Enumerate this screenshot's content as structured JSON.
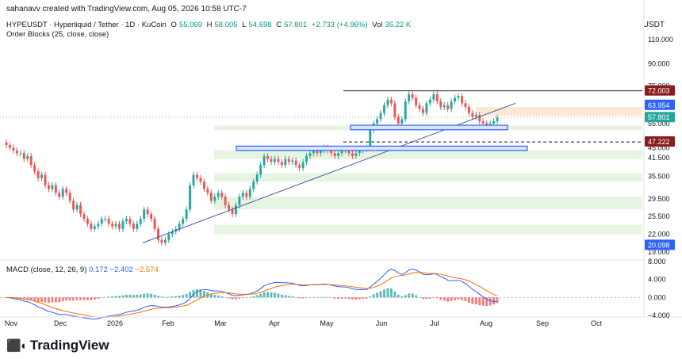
{
  "credit": "sahanavv created with TradingView.com, Aug 05, 2026 10:58 UTC-7",
  "header": {
    "symbol": "HYPEUSDT · Hyperliquid / Tether · 1D · KuCoin",
    "open_label": "O",
    "open": "55.069",
    "high_label": "H",
    "high": "58.005",
    "low_label": "L",
    "low": "54.698",
    "close_label": "C",
    "close": "57.801",
    "change": "+2.733 (+4.96%)",
    "vol_label": "Vol",
    "vol": "35.22 K",
    "indicator": "Order Blocks (25, close, close)"
  },
  "currency": "USDT",
  "macd_legend": {
    "name": "MACD (close, 12, 26, 9)",
    "v1": "0.172",
    "v2": "−2.402",
    "v3": "−2.574"
  },
  "logo": "TradingView",
  "colors": {
    "up": "#26a69a",
    "down": "#ef5350",
    "trend": "#4a5ab0",
    "ob_border": "#2962ff",
    "macd": "#2962ff",
    "signal": "#ff6d00",
    "zone_green": "#e6f4e1",
    "zone_orange": "#fbe9d3"
  },
  "chart_data": {
    "type": "candlestick",
    "price_axis": {
      "scale": "log",
      "ticks": [
        "110.000",
        "90.000",
        "75.000",
        "55.000",
        "45.000",
        "41.500",
        "35.500",
        "29.500",
        "25.500",
        "22.000",
        "19.000"
      ]
    },
    "badges": [
      {
        "value": "72.003",
        "color": "#8b1c1c"
      },
      {
        "value": "63.954",
        "color": "#2962ff"
      },
      {
        "value": "57.801",
        "color": "#26a69a"
      },
      {
        "value": "47.222",
        "color": "#8b1c1c"
      },
      {
        "value": "20.098",
        "color": "#2962ff"
      }
    ],
    "x_labels": [
      "Nov",
      "Dec",
      "2026",
      "Feb",
      "Mar",
      "Apr",
      "May",
      "Jun",
      "Jul",
      "Aug",
      "Sep",
      "Oct"
    ],
    "macd_axis": {
      "ticks": [
        "8.000",
        "4.000",
        "0.000",
        "−4.000"
      ]
    },
    "series": [
      {
        "name": "close",
        "values": [
          46,
          45,
          44,
          43,
          43,
          41,
          42,
          39,
          37,
          35,
          36,
          33,
          32,
          33,
          31,
          30,
          32,
          31,
          29,
          27,
          28,
          26,
          25,
          24,
          23,
          23.5,
          24,
          25,
          25,
          24,
          23.5,
          24,
          23,
          24.5,
          25,
          24,
          23,
          24,
          25,
          27,
          26,
          25,
          23,
          21,
          20.5,
          21,
          22,
          22.5,
          23,
          24,
          25,
          27,
          33,
          36,
          35,
          34,
          32,
          31,
          29,
          30,
          31,
          30,
          28,
          27,
          26,
          28,
          30,
          31,
          30,
          32,
          34,
          36,
          39,
          42,
          41,
          40,
          41,
          40,
          39,
          41,
          40,
          40.5,
          39,
          38,
          40,
          42,
          43,
          44,
          43,
          44,
          45,
          44,
          43,
          42,
          43,
          44,
          44.5,
          43,
          42,
          43,
          44,
          44.5,
          45,
          52,
          55,
          57,
          60,
          64,
          67,
          65,
          58,
          55,
          57,
          66,
          70,
          68,
          64,
          62,
          60,
          65,
          67,
          70,
          66,
          63,
          64,
          62,
          66,
          68,
          69,
          65,
          63,
          60,
          58,
          59,
          56,
          55,
          54,
          55,
          56,
          57.8
        ]
      }
    ]
  }
}
